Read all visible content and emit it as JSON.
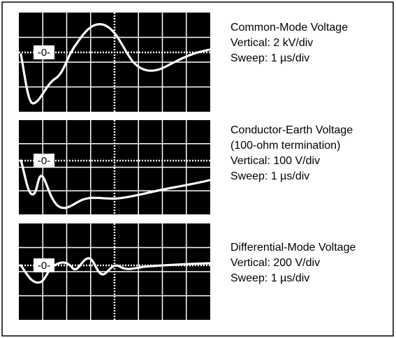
{
  "panels": [
    {
      "zero_label": "-0-",
      "lines": [
        "Common-Mode Voltage",
        "Vertical: 2 kV/div",
        "Sweep: 1 µs/div"
      ]
    },
    {
      "zero_label": "-0-",
      "lines": [
        "Conductor-Earth Voltage",
        "(100-ohm termination)",
        "Vertical: 100 V/div",
        "Sweep: 1 µs/div"
      ]
    },
    {
      "zero_label": "-0-",
      "lines": [
        "Differential-Mode Voltage",
        "Vertical: 200 V/div",
        "Sweep: 1 µs/div"
      ]
    }
  ]
}
